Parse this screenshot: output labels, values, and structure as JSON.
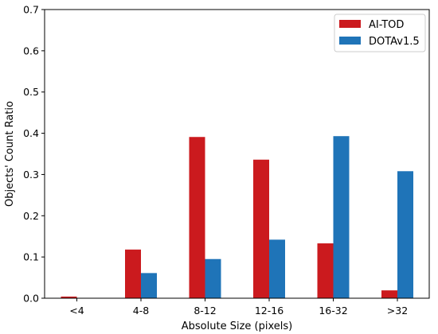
{
  "chart_data": {
    "type": "bar",
    "title": "",
    "xlabel": "Absolute Size (pixels)",
    "ylabel": "Objects' Count Ratio",
    "ylim": [
      0,
      0.7
    ],
    "yticks": [
      0.0,
      0.1,
      0.2,
      0.3,
      0.4,
      0.5,
      0.6,
      0.7
    ],
    "ytick_labels": [
      "0.0",
      "0.1",
      "0.2",
      "0.3",
      "0.4",
      "0.5",
      "0.6",
      "0.7"
    ],
    "categories": [
      "<4",
      "4-8",
      "8-12",
      "12-16",
      "16-32",
      ">32"
    ],
    "grid": false,
    "legend_position": "top-right",
    "series": [
      {
        "name": "AI-TOD",
        "color": "#cb1a1e",
        "values": [
          0.004,
          0.118,
          0.391,
          0.336,
          0.133,
          0.019
        ]
      },
      {
        "name": "DOTAv1.5",
        "color": "#1f74b8",
        "values": [
          0.0,
          0.061,
          0.095,
          0.142,
          0.393,
          0.308
        ]
      }
    ]
  }
}
